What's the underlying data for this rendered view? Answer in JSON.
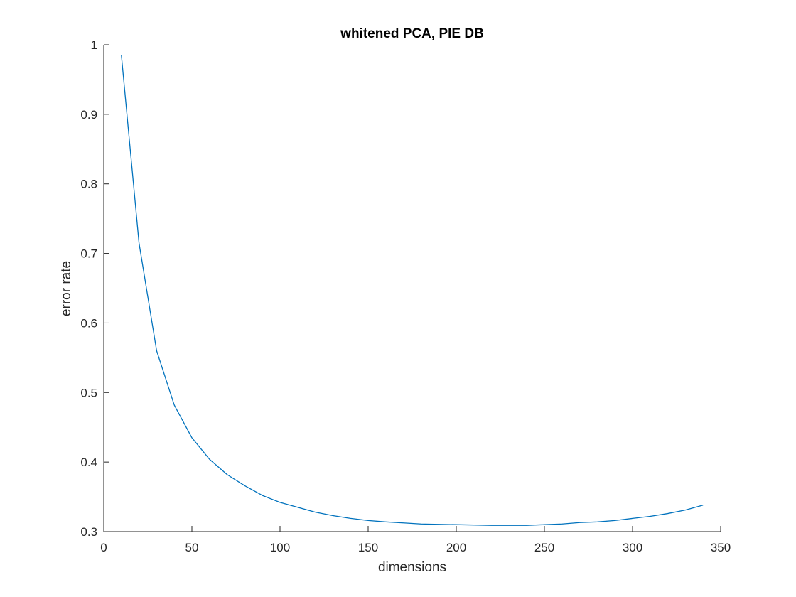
{
  "chart_data": {
    "type": "line",
    "title": "whitened PCA, PIE DB",
    "xlabel": "dimensions",
    "ylabel": "error rate",
    "xlim": [
      0,
      350
    ],
    "ylim": [
      0.3,
      1
    ],
    "xticks": [
      0,
      50,
      100,
      150,
      200,
      250,
      300,
      350
    ],
    "yticks": [
      0.3,
      0.4,
      0.5,
      0.6,
      0.7,
      0.8,
      0.9,
      1
    ],
    "xtick_labels": [
      "0",
      "50",
      "100",
      "150",
      "200",
      "250",
      "300",
      "350"
    ],
    "ytick_labels": [
      "0.3",
      "0.4",
      "0.5",
      "0.6",
      "0.7",
      "0.8",
      "0.9",
      "1"
    ],
    "grid": false,
    "series": [
      {
        "color": "#0072BD",
        "x": [
          10,
          20,
          30,
          40,
          50,
          60,
          70,
          80,
          90,
          100,
          110,
          120,
          130,
          140,
          150,
          160,
          170,
          180,
          190,
          200,
          210,
          220,
          230,
          240,
          250,
          260,
          270,
          280,
          290,
          300,
          310,
          320,
          330,
          340
        ],
        "y": [
          0.985,
          0.715,
          0.56,
          0.482,
          0.435,
          0.404,
          0.382,
          0.366,
          0.352,
          0.342,
          0.335,
          0.328,
          0.323,
          0.319,
          0.316,
          0.314,
          0.3125,
          0.311,
          0.3105,
          0.31,
          0.3095,
          0.309,
          0.309,
          0.309,
          0.31,
          0.311,
          0.313,
          0.314,
          0.316,
          0.319,
          0.322,
          0.326,
          0.331,
          0.338
        ]
      }
    ]
  }
}
